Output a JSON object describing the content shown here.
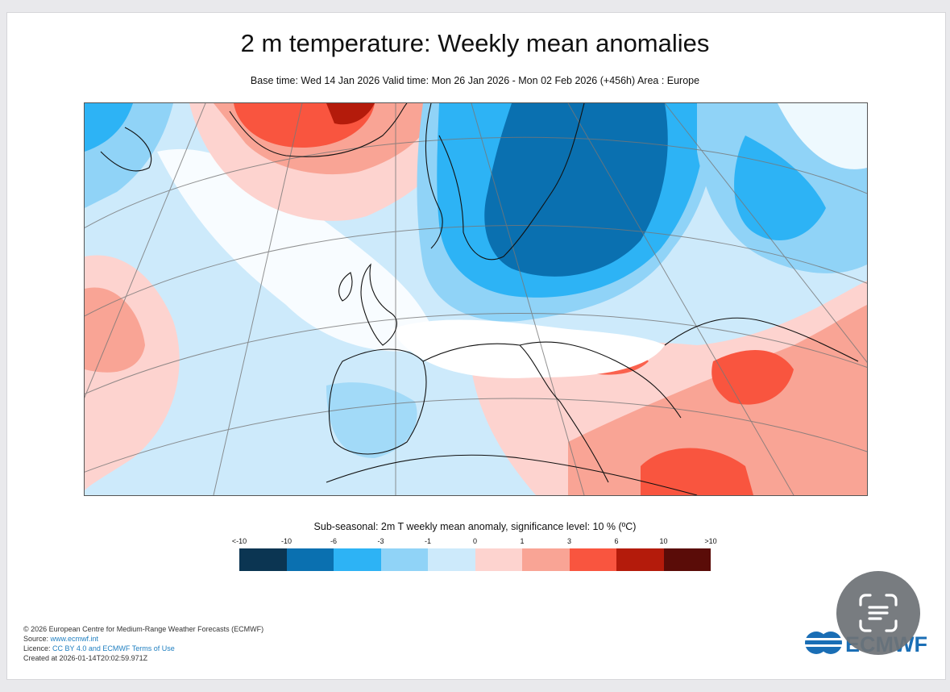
{
  "title": "2 m temperature: Weekly mean anomalies",
  "subtitle": "Base time: Wed 14 Jan 2026 Valid time: Mon 26 Jan 2026 - Mon 02 Feb 2026 (+456h) Area : Europe",
  "legend": {
    "title": "Sub-seasonal: 2m T weekly mean anomaly, significance level: 10 % (ºC)",
    "ticks": [
      "<-10",
      "-10",
      "-6",
      "-3",
      "-1",
      "0",
      "1",
      "3",
      "6",
      "10",
      ">10"
    ],
    "colors": [
      "#0b3552",
      "#0a70b0",
      "#2db3f5",
      "#90d3f7",
      "#cdeafb",
      "#fdd3cf",
      "#f9a495",
      "#f9553f",
      "#b41b0b",
      "#5a0c08"
    ]
  },
  "footer": {
    "copyright": "© 2026 European Centre for Medium-Range Weather Forecasts (ECMWF)",
    "source_label": "Source: ",
    "source_link": "www.ecmwf.int",
    "licence_label": "Licence: ",
    "licence_link": "CC BY 4.0 and ECMWF Terms of Use",
    "created": "Created at 2026-01-14T20:02:59.971Z"
  },
  "logo_text": "ECMWF",
  "scan_icon": "text-scan-icon"
}
